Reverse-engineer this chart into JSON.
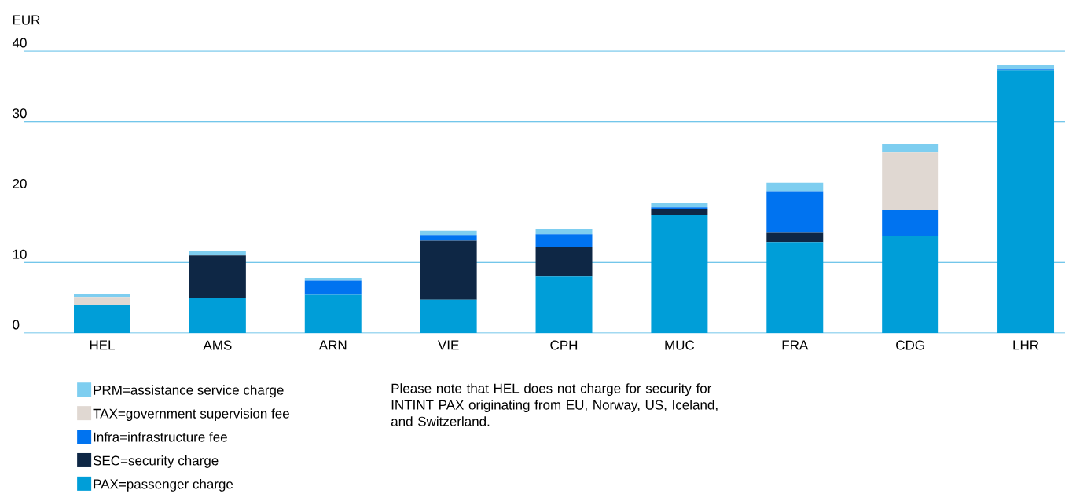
{
  "chart_data": {
    "type": "bar",
    "stacked": true,
    "ylabel": "EUR",
    "categories": [
      "HEL",
      "AMS",
      "ARN",
      "VIE",
      "CPH",
      "MUC",
      "FRA",
      "CDG",
      "LHR"
    ],
    "series": [
      {
        "name": "PAX=passenger charge",
        "color": "#009ed8",
        "values": [
          3.9,
          4.9,
          5.4,
          4.7,
          8.0,
          16.7,
          12.9,
          13.7,
          37.3
        ]
      },
      {
        "name": "SEC=security charge",
        "color": "#0e2745",
        "values": [
          null,
          6.1,
          null,
          8.4,
          4.2,
          0.9,
          1.3,
          null,
          null
        ]
      },
      {
        "name": "Infra=infrastructure fee",
        "color": "#0073f0",
        "values": [
          null,
          null,
          2.0,
          0.8,
          1.8,
          0.2,
          5.9,
          3.8,
          0.1
        ]
      },
      {
        "name": "TAX=government supervision fee",
        "color": "#e0d8d2",
        "values": [
          1.2,
          null,
          null,
          null,
          null,
          null,
          null,
          8.1,
          null
        ]
      },
      {
        "name": "PRM=assistance service charge",
        "color": "#7ecef0",
        "values": [
          0.4,
          0.7,
          0.4,
          0.6,
          0.8,
          0.7,
          1.2,
          1.2,
          0.6
        ]
      }
    ],
    "ylim": [
      0,
      40
    ],
    "yticks": [
      0,
      10,
      20,
      30,
      40
    ],
    "grid": "y",
    "legend": "bottom left",
    "annotations": [
      "Please note that HEL does not charge for security for INTINT PAX originating from EU, Norway, US, Iceland, and Switzerland."
    ]
  }
}
